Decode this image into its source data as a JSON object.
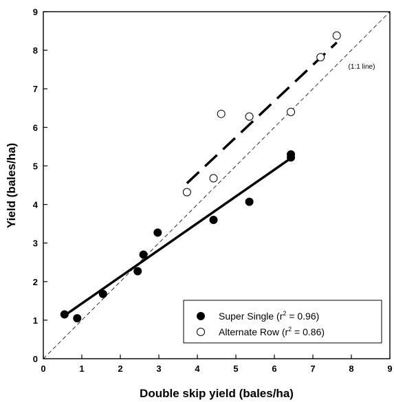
{
  "chart_data": {
    "type": "scatter",
    "xlabel": "Double skip yield (bales/ha)",
    "ylabel": "Yield (bales/ha)",
    "xlim": [
      0,
      9
    ],
    "ylim": [
      0,
      9
    ],
    "x_ticks": [
      "0",
      "1",
      "2",
      "3",
      "4",
      "5",
      "6",
      "7",
      "8",
      "9"
    ],
    "y_ticks": [
      "0",
      "1",
      "2",
      "3",
      "4",
      "5",
      "6",
      "7",
      "8",
      "9"
    ],
    "grid": false,
    "legend_position": "bottom-right",
    "reference_line": {
      "label": "(1:1 line)",
      "points": [
        [
          0,
          0
        ],
        [
          9,
          9
        ]
      ],
      "style": "thin-dashed"
    },
    "series": [
      {
        "marker": "filled-circle",
        "legend": {
          "text": "Super Single (r",
          "sup": "2",
          "tail": " = 0.96)"
        },
        "x": [
          0.55,
          0.88,
          1.55,
          2.45,
          2.6,
          2.97,
          4.42,
          5.35,
          6.43,
          6.43
        ],
        "y": [
          1.15,
          1.05,
          1.68,
          2.27,
          2.7,
          3.27,
          3.6,
          4.07,
          5.3,
          5.22
        ],
        "fit": {
          "x": [
            0.55,
            6.43
          ],
          "y": [
            1.12,
            5.2
          ],
          "style": "solid-thick"
        }
      },
      {
        "marker": "open-circle",
        "legend": {
          "text": "Alternate Row (r",
          "sup": "2",
          "tail": " = 0.86)"
        },
        "x": [
          3.73,
          4.42,
          4.62,
          5.35,
          6.43,
          7.2,
          7.62
        ],
        "y": [
          4.32,
          4.68,
          6.35,
          6.28,
          6.4,
          7.82,
          8.38
        ],
        "fit": {
          "x": [
            3.73,
            7.62
          ],
          "y": [
            4.55,
            8.2
          ],
          "style": "dashed-thick"
        }
      }
    ]
  }
}
